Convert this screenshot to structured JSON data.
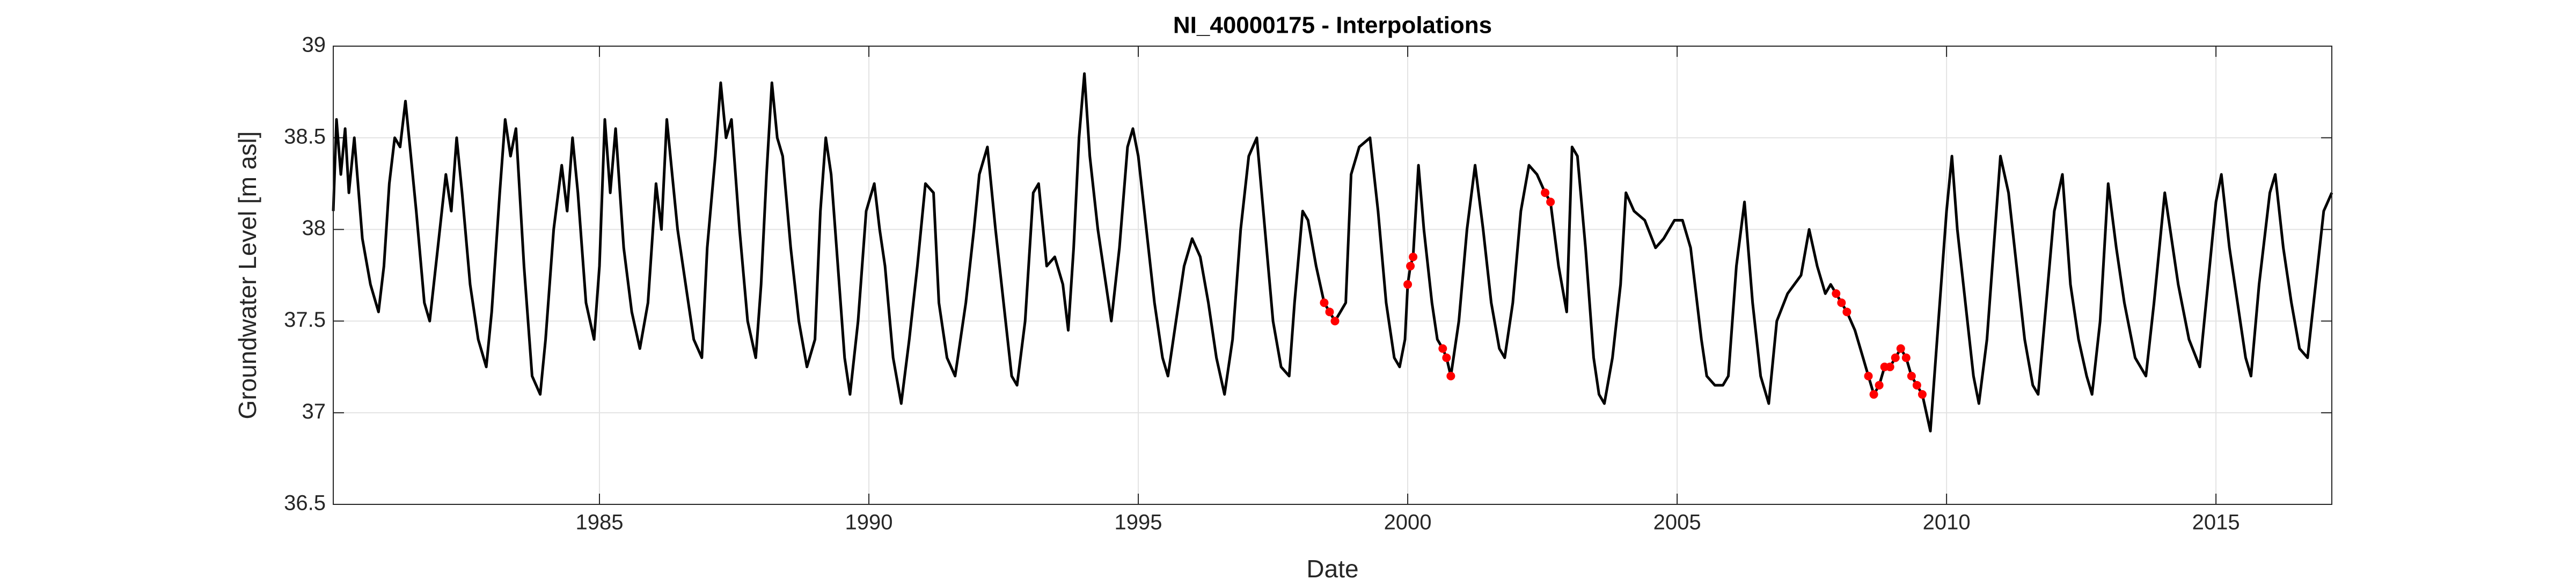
{
  "chart_data": {
    "type": "line",
    "title": "NI_40000175 - Interpolations",
    "x_label": "Date",
    "y_label": "Groundwater Level [m asl]",
    "xlim": [
      1980.06,
      2017.15
    ],
    "xticks": [
      1985,
      1990,
      1995,
      2000,
      2005,
      2010,
      2015
    ],
    "ylim": [
      36.5,
      39
    ],
    "yticks": [
      36.5,
      37,
      37.5,
      38,
      38.5,
      39
    ],
    "grid": true,
    "series": [
      {
        "type": "line",
        "color": "#000000",
        "x": [
          1980.06,
          1980.12,
          1980.2,
          1980.28,
          1980.35,
          1980.45,
          1980.6,
          1980.75,
          1980.9,
          1981.0,
          1981.1,
          1981.2,
          1981.3,
          1981.4,
          1981.5,
          1981.6,
          1981.75,
          1981.85,
          1982.0,
          1982.15,
          1982.25,
          1982.35,
          1982.45,
          1982.6,
          1982.75,
          1982.9,
          1983.0,
          1983.15,
          1983.25,
          1983.35,
          1983.45,
          1983.6,
          1983.75,
          1983.9,
          1984.0,
          1984.15,
          1984.3,
          1984.4,
          1984.5,
          1984.6,
          1984.75,
          1984.9,
          1985.0,
          1985.1,
          1985.2,
          1985.3,
          1985.45,
          1985.6,
          1985.75,
          1985.9,
          1986.05,
          1986.15,
          1986.25,
          1986.35,
          1986.45,
          1986.6,
          1986.75,
          1986.9,
          1987.0,
          1987.15,
          1987.25,
          1987.35,
          1987.45,
          1987.6,
          1987.75,
          1987.9,
          1988.0,
          1988.1,
          1988.2,
          1988.3,
          1988.4,
          1988.55,
          1988.7,
          1988.85,
          1989.0,
          1989.1,
          1989.2,
          1989.3,
          1989.4,
          1989.55,
          1989.65,
          1989.8,
          1989.95,
          1990.1,
          1990.2,
          1990.3,
          1990.45,
          1990.6,
          1990.75,
          1990.9,
          1991.05,
          1991.2,
          1991.3,
          1991.45,
          1991.6,
          1991.8,
          1991.95,
          1992.05,
          1992.2,
          1992.35,
          1992.5,
          1992.65,
          1992.75,
          1992.9,
          1993.05,
          1993.15,
          1993.3,
          1993.45,
          1993.6,
          1993.7,
          1993.8,
          1993.9,
          1994.0,
          1994.1,
          1994.25,
          1994.4,
          1994.5,
          1994.65,
          1994.8,
          1994.9,
          1995.0,
          1995.15,
          1995.3,
          1995.45,
          1995.55,
          1995.7,
          1995.85,
          1996.0,
          1996.15,
          1996.3,
          1996.45,
          1996.6,
          1996.75,
          1996.9,
          1997.05,
          1997.2,
          1997.35,
          1997.5,
          1997.65,
          1997.8,
          1997.9,
          1998.05,
          1998.15,
          1998.3,
          1998.45,
          1998.55,
          1998.65,
          1998.75,
          1998.85,
          1998.95,
          1999.1,
          1999.3,
          1999.45,
          1999.6,
          1999.75,
          1999.85,
          1999.95,
          2000.0,
          2000.05,
          2000.1,
          2000.2,
          2000.3,
          2000.45,
          2000.55,
          2000.65,
          2000.72,
          2000.8,
          2000.95,
          2001.1,
          2001.25,
          2001.4,
          2001.55,
          2001.7,
          2001.8,
          2001.95,
          2002.1,
          2002.25,
          2002.4,
          2002.55,
          2002.65,
          2002.8,
          2002.95,
          2003.05,
          2003.15,
          2003.3,
          2003.45,
          2003.55,
          2003.65,
          2003.8,
          2003.95,
          2004.05,
          2004.2,
          2004.4,
          2004.6,
          2004.75,
          2004.95,
          2005.1,
          2005.25,
          2005.45,
          2005.55,
          2005.7,
          2005.85,
          2005.95,
          2006.1,
          2006.25,
          2006.4,
          2006.55,
          2006.7,
          2006.85,
          2007.05,
          2007.3,
          2007.45,
          2007.6,
          2007.75,
          2007.85,
          2007.95,
          2008.05,
          2008.15,
          2008.3,
          2008.45,
          2008.55,
          2008.65,
          2008.75,
          2008.85,
          2008.95,
          2009.05,
          2009.15,
          2009.25,
          2009.35,
          2009.45,
          2009.55,
          2009.7,
          2009.85,
          2010.0,
          2010.1,
          2010.2,
          2010.35,
          2010.5,
          2010.6,
          2010.75,
          2010.9,
          2011.0,
          2011.15,
          2011.3,
          2011.45,
          2011.6,
          2011.7,
          2011.85,
          2012.0,
          2012.15,
          2012.3,
          2012.45,
          2012.6,
          2012.7,
          2012.85,
          2013.0,
          2013.15,
          2013.3,
          2013.5,
          2013.7,
          2013.85,
          2014.05,
          2014.15,
          2014.3,
          2014.5,
          2014.7,
          2014.85,
          2015.0,
          2015.1,
          2015.25,
          2015.4,
          2015.55,
          2015.65,
          2015.8,
          2016.0,
          2016.1,
          2016.25,
          2016.4,
          2016.55,
          2016.7,
          2016.85,
          2017.0,
          2017.15
        ],
        "values": [
          38.1,
          38.6,
          38.3,
          38.55,
          38.2,
          38.5,
          37.95,
          37.7,
          37.55,
          37.8,
          38.25,
          38.5,
          38.45,
          38.7,
          38.4,
          38.1,
          37.6,
          37.5,
          37.9,
          38.3,
          38.1,
          38.5,
          38.2,
          37.7,
          37.4,
          37.25,
          37.55,
          38.2,
          38.6,
          38.4,
          38.55,
          37.8,
          37.2,
          37.1,
          37.4,
          38.0,
          38.35,
          38.1,
          38.5,
          38.2,
          37.6,
          37.4,
          37.8,
          38.6,
          38.2,
          38.55,
          37.9,
          37.55,
          37.35,
          37.6,
          38.25,
          38.0,
          38.6,
          38.3,
          38.0,
          37.7,
          37.4,
          37.3,
          37.9,
          38.4,
          38.8,
          38.5,
          38.6,
          38.0,
          37.5,
          37.3,
          37.7,
          38.3,
          38.8,
          38.5,
          38.4,
          37.9,
          37.5,
          37.25,
          37.4,
          38.1,
          38.5,
          38.3,
          37.9,
          37.3,
          37.1,
          37.5,
          38.1,
          38.25,
          38.0,
          37.8,
          37.3,
          37.05,
          37.4,
          37.8,
          38.25,
          38.2,
          37.6,
          37.3,
          37.2,
          37.6,
          38.0,
          38.3,
          38.45,
          38.0,
          37.6,
          37.2,
          37.15,
          37.5,
          38.2,
          38.25,
          37.8,
          37.85,
          37.7,
          37.45,
          37.9,
          38.5,
          38.85,
          38.4,
          38.0,
          37.7,
          37.5,
          37.9,
          38.45,
          38.55,
          38.4,
          38.0,
          37.6,
          37.3,
          37.2,
          37.5,
          37.8,
          37.95,
          37.85,
          37.6,
          37.3,
          37.1,
          37.4,
          38.0,
          38.4,
          38.5,
          38.0,
          37.5,
          37.25,
          37.2,
          37.6,
          38.1,
          38.05,
          37.8,
          37.6,
          37.55,
          37.5,
          37.55,
          37.6,
          38.3,
          38.45,
          38.5,
          38.1,
          37.6,
          37.3,
          37.25,
          37.4,
          37.7,
          37.8,
          37.85,
          38.35,
          38.0,
          37.6,
          37.4,
          37.35,
          37.3,
          37.2,
          37.5,
          38.0,
          38.35,
          38.0,
          37.6,
          37.35,
          37.3,
          37.6,
          38.1,
          38.35,
          38.3,
          38.2,
          38.15,
          37.8,
          37.55,
          38.45,
          38.4,
          37.9,
          37.3,
          37.1,
          37.05,
          37.3,
          37.7,
          38.2,
          38.1,
          38.05,
          37.9,
          37.95,
          38.05,
          38.05,
          37.9,
          37.4,
          37.2,
          37.15,
          37.15,
          37.2,
          37.8,
          38.15,
          37.6,
          37.2,
          37.05,
          37.5,
          37.65,
          37.75,
          38.0,
          37.8,
          37.65,
          37.7,
          37.65,
          37.6,
          37.55,
          37.45,
          37.3,
          37.2,
          37.1,
          37.15,
          37.25,
          37.25,
          37.3,
          37.35,
          37.3,
          37.2,
          37.15,
          37.1,
          36.9,
          37.5,
          38.1,
          38.4,
          38.0,
          37.6,
          37.2,
          37.05,
          37.4,
          38.0,
          38.4,
          38.2,
          37.8,
          37.4,
          37.15,
          37.1,
          37.6,
          38.1,
          38.3,
          37.7,
          37.4,
          37.2,
          37.1,
          37.5,
          38.25,
          37.9,
          37.6,
          37.3,
          37.2,
          37.6,
          38.2,
          38.0,
          37.7,
          37.4,
          37.25,
          37.7,
          38.15,
          38.3,
          37.9,
          37.6,
          37.3,
          37.2,
          37.7,
          38.2,
          38.3,
          37.9,
          37.6,
          37.35,
          37.3,
          37.7,
          38.1,
          38.2
        ]
      },
      {
        "type": "scatter",
        "color": "#ff0000",
        "x": [
          1998.45,
          1998.55,
          1998.65,
          2000.0,
          2000.05,
          2000.1,
          2000.65,
          2000.72,
          2000.8,
          2002.55,
          2002.65,
          2007.95,
          2008.05,
          2008.15,
          2008.55,
          2008.65,
          2008.75,
          2008.85,
          2008.95,
          2009.05,
          2009.15,
          2009.25,
          2009.35,
          2009.45,
          2009.55
        ],
        "values": [
          37.6,
          37.55,
          37.5,
          37.7,
          37.8,
          37.85,
          37.35,
          37.3,
          37.2,
          38.2,
          38.15,
          37.65,
          37.6,
          37.55,
          37.2,
          37.1,
          37.15,
          37.25,
          37.25,
          37.3,
          37.35,
          37.3,
          37.2,
          37.15,
          37.1
        ]
      }
    ]
  }
}
